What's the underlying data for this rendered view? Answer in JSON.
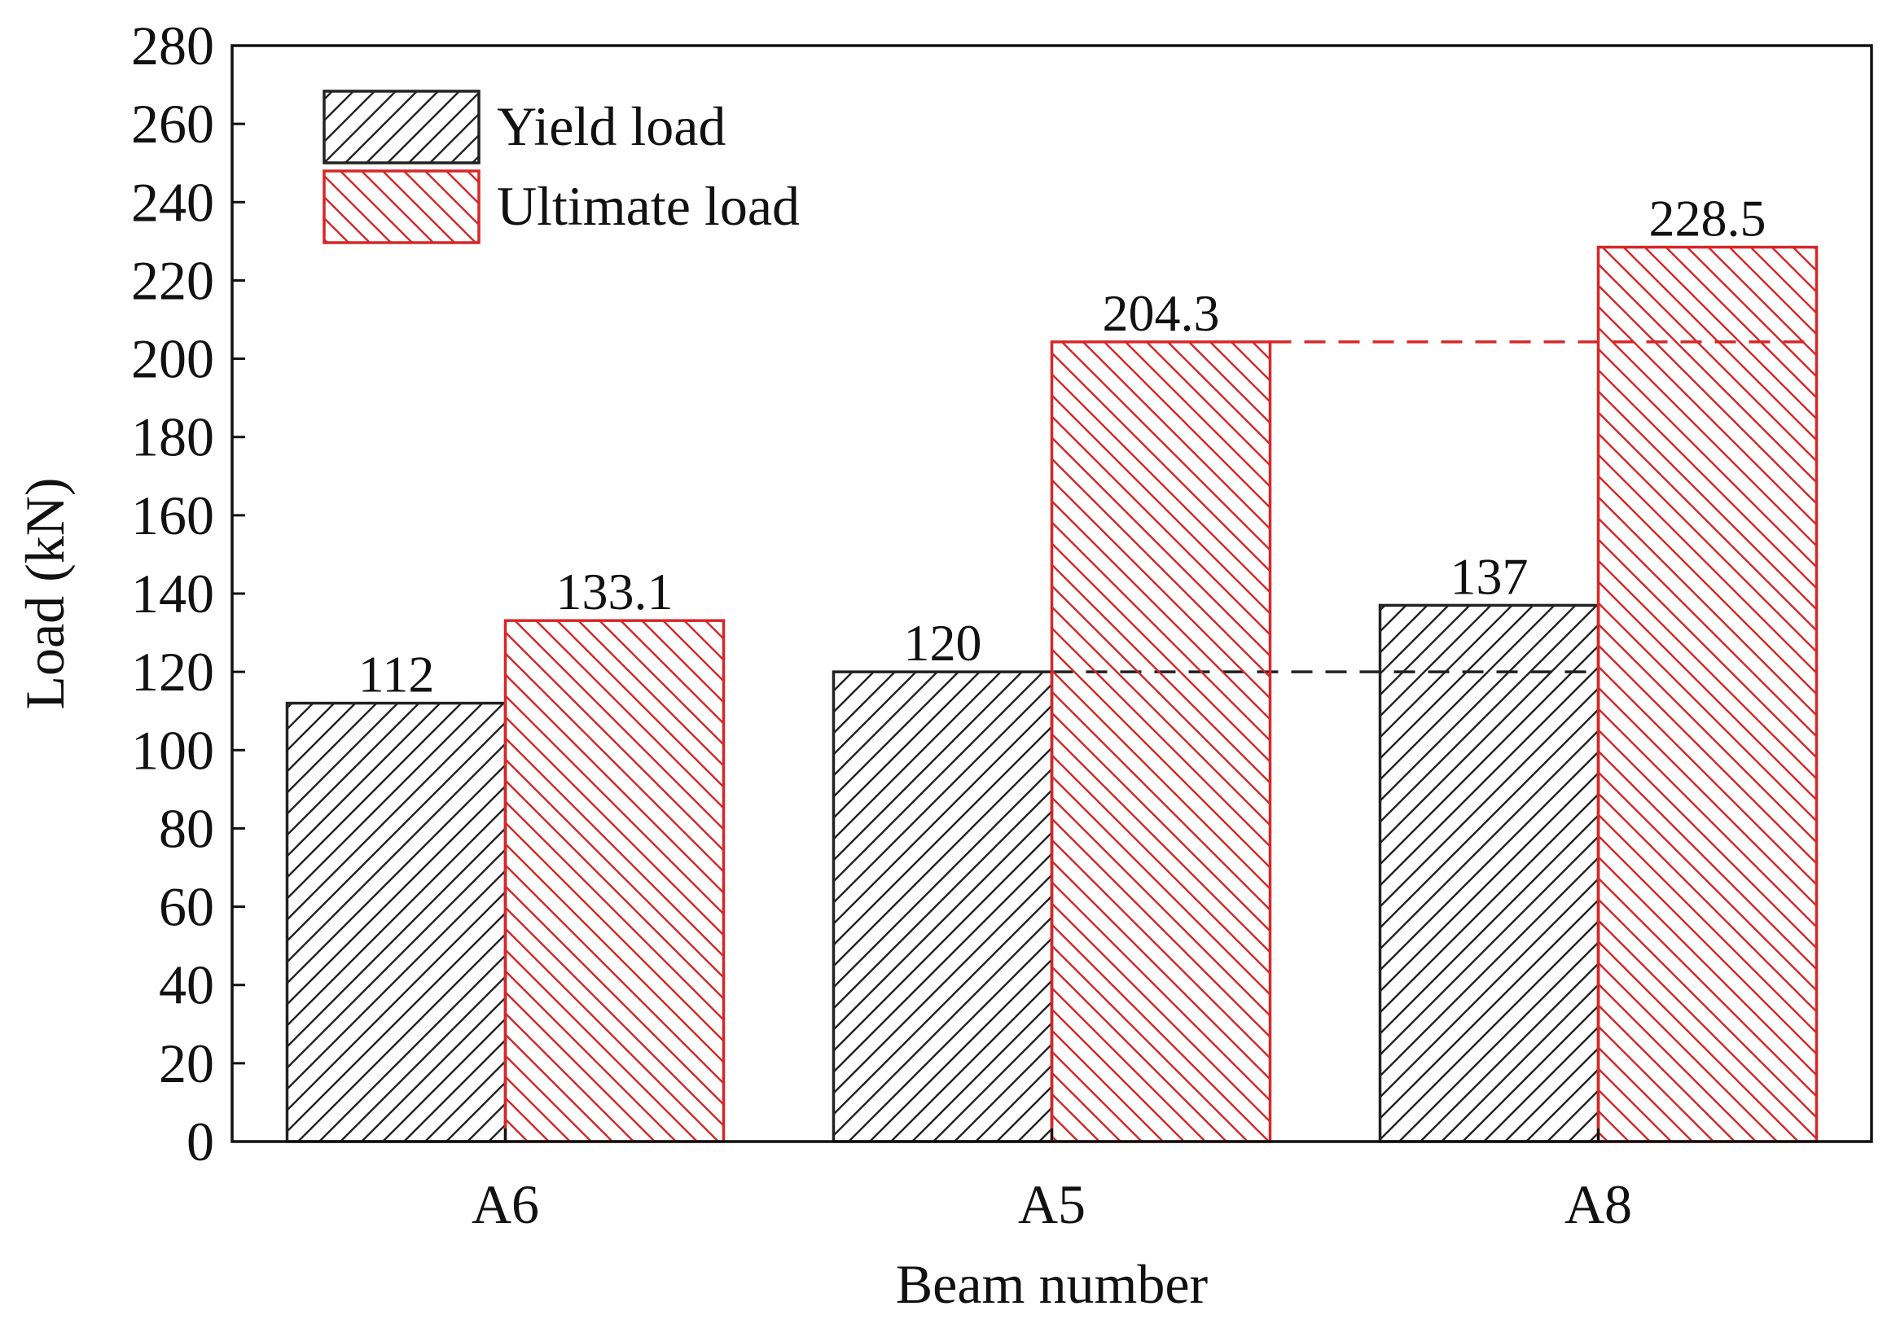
{
  "colors": {
    "yield": "#222222",
    "ultimate": "#d62728",
    "axis": "#111111",
    "background": "#ffffff"
  },
  "chart_data": {
    "type": "bar",
    "title": "",
    "xlabel": "Beam number",
    "ylabel": "Load (kN)",
    "ylim": [
      0,
      280
    ],
    "yticks": [
      0,
      20,
      40,
      60,
      80,
      100,
      120,
      140,
      160,
      180,
      200,
      220,
      240,
      260,
      280
    ],
    "categories": [
      "A6",
      "A5",
      "A8"
    ],
    "series": [
      {
        "name": "Yield load",
        "values": [
          112,
          120,
          137
        ],
        "labels": [
          "112",
          "120",
          "137"
        ],
        "pattern": "hatch-forward"
      },
      {
        "name": "Ultimate load",
        "values": [
          133.1,
          204.3,
          228.5
        ],
        "labels": [
          "133.1",
          "204.3",
          "228.5"
        ],
        "pattern": "hatch-back"
      }
    ],
    "reference_lines": [
      {
        "series": "Yield load",
        "value": 120,
        "from": "A5",
        "to": "A8",
        "style": "dashed"
      },
      {
        "series": "Ultimate load",
        "value": 204.3,
        "from": "A5",
        "to": "A8",
        "style": "dashed"
      }
    ],
    "legend_position": "top-left",
    "grid": false
  }
}
